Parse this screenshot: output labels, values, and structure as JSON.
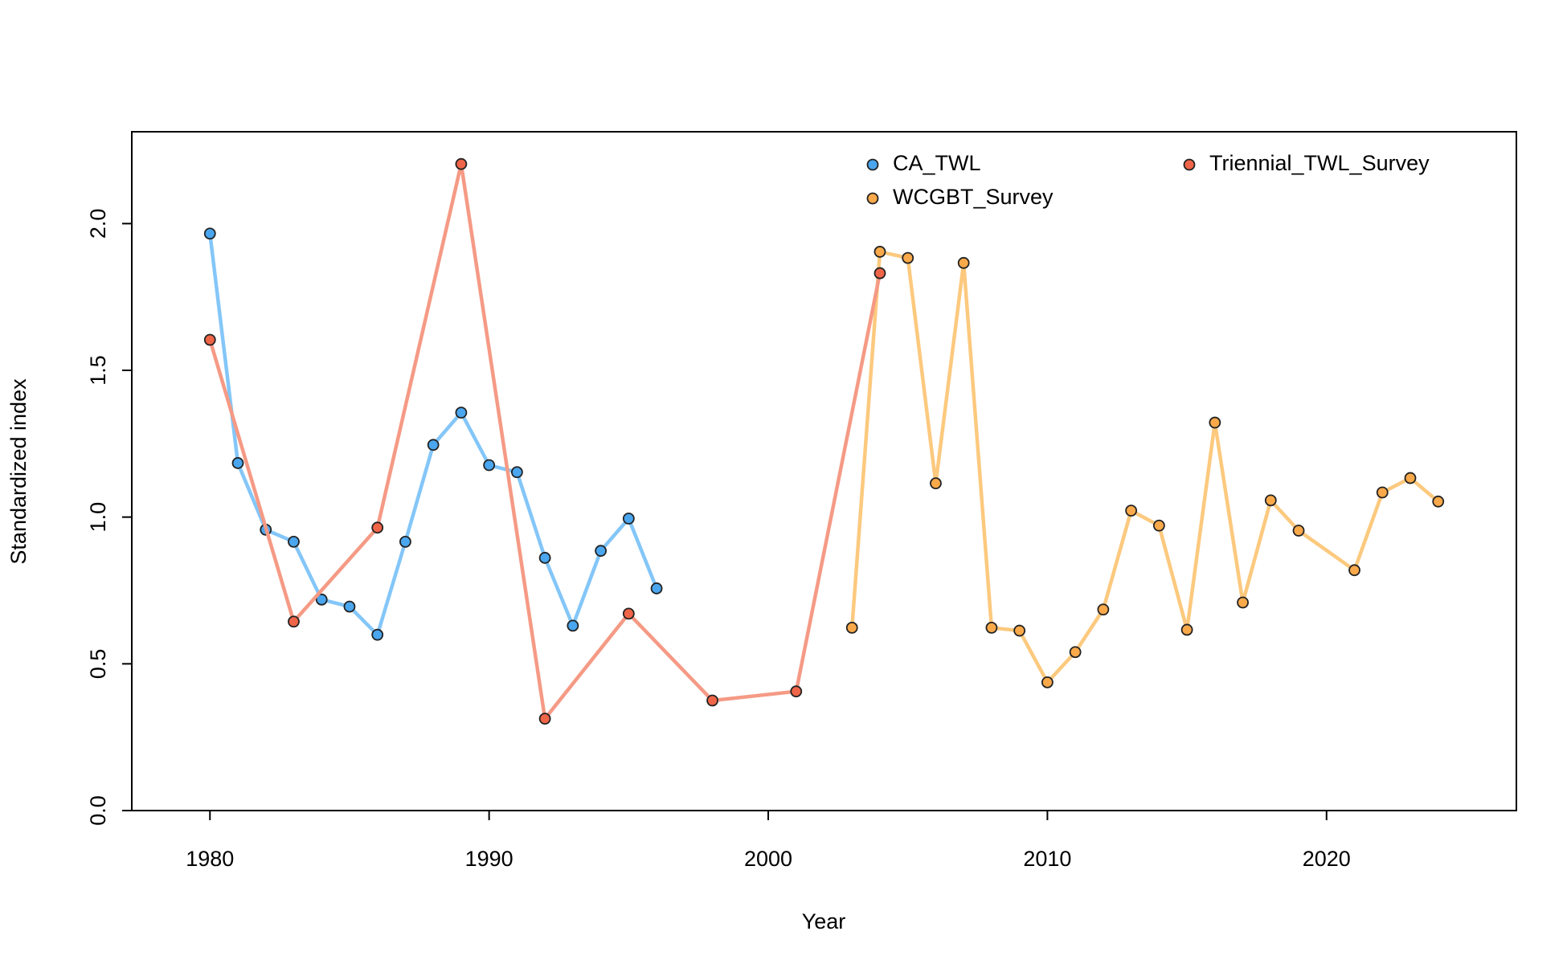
{
  "chart_data": {
    "type": "line",
    "x_label": "Year",
    "y_label": "Standardized index",
    "xlim": [
      1977.2,
      2026.8
    ],
    "ylim": [
      0,
      2.313
    ],
    "xticks": [
      1980,
      1990,
      2000,
      2010,
      2020
    ],
    "yticks": [
      {
        "value": 0,
        "label": "0.0"
      },
      {
        "value": 0.5,
        "label": "0.5"
      },
      {
        "value": 1,
        "label": "1.0"
      },
      {
        "value": 1.5,
        "label": "1.5"
      },
      {
        "value": 2,
        "label": "2.0"
      }
    ],
    "grid": false,
    "legend": "top-right",
    "series": [
      {
        "name": "CA_TWL",
        "color": "#4aa6ee",
        "line_color": "#84c6f8",
        "x": [
          1980,
          1981,
          1982,
          1983,
          1984,
          1985,
          1986,
          1987,
          1988,
          1989,
          1990,
          1991,
          1992,
          1993,
          1994,
          1995,
          1996
        ],
        "values": [
          1.966,
          1.184,
          0.957,
          0.916,
          0.719,
          0.695,
          0.599,
          0.916,
          1.246,
          1.356,
          1.177,
          1.153,
          0.861,
          0.63,
          0.885,
          0.995,
          0.757
        ]
      },
      {
        "name": "WCGBT_Survey",
        "color": "#f9a94a",
        "line_color": "#fcc97e",
        "x": [
          2003,
          2004,
          2005,
          2006,
          2007,
          2008,
          2009,
          2010,
          2011,
          2012,
          2013,
          2014,
          2015,
          2016,
          2017,
          2018,
          2019,
          2021,
          2022,
          2023,
          2024
        ],
        "values": [
          0.623,
          1.904,
          1.883,
          1.115,
          1.866,
          0.623,
          0.613,
          0.437,
          0.54,
          0.685,
          1.022,
          0.971,
          0.616,
          1.322,
          0.709,
          1.057,
          0.954,
          0.819,
          1.084,
          1.133,
          1.053
        ]
      },
      {
        "name": "Triennial_TWL_Survey",
        "color": "#ef6548",
        "line_color": "#f59a85",
        "x": [
          1980,
          1983,
          1986,
          1989,
          1992,
          1995,
          1998,
          2001,
          2004
        ],
        "values": [
          1.604,
          0.644,
          0.964,
          2.203,
          0.313,
          0.671,
          0.375,
          0.406,
          1.831
        ]
      }
    ]
  }
}
